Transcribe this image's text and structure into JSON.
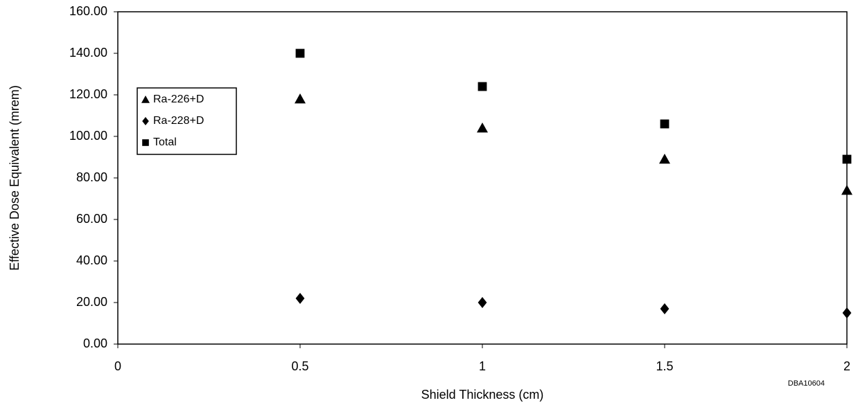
{
  "chart_data": {
    "type": "scatter",
    "x_label": "Shield Thickness (cm)",
    "y_label": "Effective Dose Equivalent (mrem)",
    "annotation": "DBA10604",
    "x": [
      0.5,
      1,
      1.5,
      2
    ],
    "xlim": [
      0,
      2
    ],
    "xticks": [
      0,
      0.5,
      1,
      1.5,
      2
    ],
    "ylim": [
      0,
      160
    ],
    "yticks": [
      {
        "value": 0,
        "label": "0.00"
      },
      {
        "value": 20,
        "label": "20.00"
      },
      {
        "value": 40,
        "label": "40.00"
      },
      {
        "value": 60,
        "label": "60.00"
      },
      {
        "value": 80,
        "label": "80.00"
      },
      {
        "value": 100,
        "label": "100.00"
      },
      {
        "value": 120,
        "label": "120.00"
      },
      {
        "value": 140,
        "label": "140.00"
      },
      {
        "value": 160,
        "label": "160.00"
      }
    ],
    "legend": "upper left",
    "series": [
      {
        "name": "Ra-226+D",
        "color": "#000000",
        "marker": "triangle",
        "values": [
          118,
          104,
          89,
          74
        ]
      },
      {
        "name": "Ra-228+D",
        "color": "#000000",
        "marker": "diamond",
        "values": [
          22,
          20,
          17,
          15
        ]
      },
      {
        "name": "Total",
        "color": "#000000",
        "marker": "square",
        "values": [
          140,
          124,
          106,
          89
        ]
      }
    ]
  }
}
